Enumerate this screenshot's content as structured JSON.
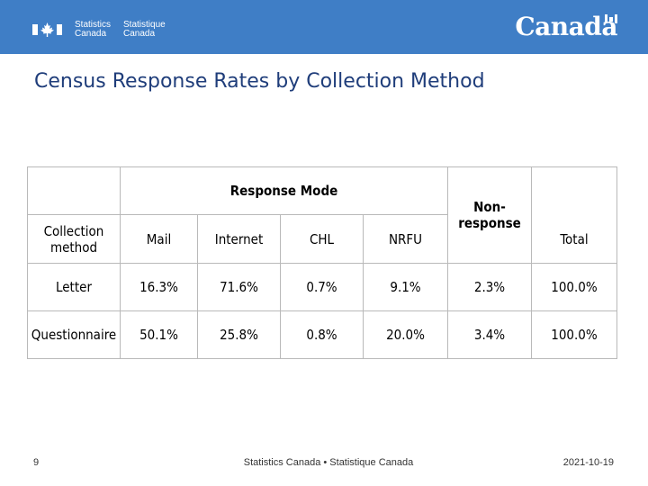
{
  "header": {
    "fip_en": [
      "Statistics",
      "Canada"
    ],
    "fip_fr": [
      "Statistique",
      "Canada"
    ],
    "wordmark": "Canada",
    "colors": {
      "bar": "#3f7ec6",
      "title": "#1f3d7a"
    }
  },
  "slide": {
    "title": "Census Response Rates by Collection Method"
  },
  "table": {
    "group_header": "Response Mode",
    "nonresponse_header": [
      "Non-",
      "response"
    ],
    "columns": {
      "method": [
        "Collection",
        "method"
      ],
      "mail": "Mail",
      "internet": "Internet",
      "chl": "CHL",
      "nrfu": "NRFU",
      "total": "Total"
    },
    "rows": [
      {
        "method": "Letter",
        "mail": "16.3%",
        "internet": "71.6%",
        "chl": "0.7%",
        "nrfu": "9.1%",
        "nonresponse": "2.3%",
        "total": "100.0%"
      },
      {
        "method": "Questionnaire",
        "mail": "50.1%",
        "internet": "25.8%",
        "chl": "0.8%",
        "nrfu": "20.0%",
        "nonresponse": "3.4%",
        "total": "100.0%"
      }
    ]
  },
  "footer": {
    "page_number": "9",
    "center": "Statistics Canada • Statistique Canada",
    "date": "2021-10-19"
  }
}
